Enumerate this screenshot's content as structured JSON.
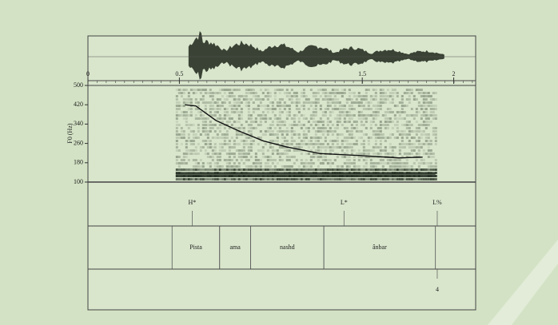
{
  "chart_data": {
    "type": "line",
    "y_label": "F0 (Hz)",
    "xlim": [
      0,
      2.12
    ],
    "xticks": [
      0,
      0.5,
      1.5,
      2
    ],
    "ylim": [
      100,
      500
    ],
    "yticks": [
      100,
      180,
      260,
      340,
      420,
      500
    ],
    "x": [
      0.53,
      0.59,
      0.7,
      0.83,
      0.96,
      1.09,
      1.27,
      1.48,
      1.7,
      1.83
    ],
    "values": [
      420,
      415,
      355,
      310,
      270,
      245,
      218,
      210,
      200,
      203
    ],
    "color": "#111111",
    "tones": [
      {
        "label": "H*",
        "time": 0.57
      },
      {
        "label": "L*",
        "time": 1.4
      },
      {
        "label": "L%",
        "time": 1.91
      }
    ],
    "words": [
      {
        "label": "Pista",
        "start": 0.46,
        "end": 0.72
      },
      {
        "label": "ama",
        "start": 0.72,
        "end": 0.89
      },
      {
        "label": "nashd",
        "start": 0.89,
        "end": 1.29
      },
      {
        "label": "ânbar",
        "start": 1.29,
        "end": 1.9
      }
    ],
    "breaks": [
      {
        "label": "4",
        "time": 1.91
      }
    ]
  }
}
